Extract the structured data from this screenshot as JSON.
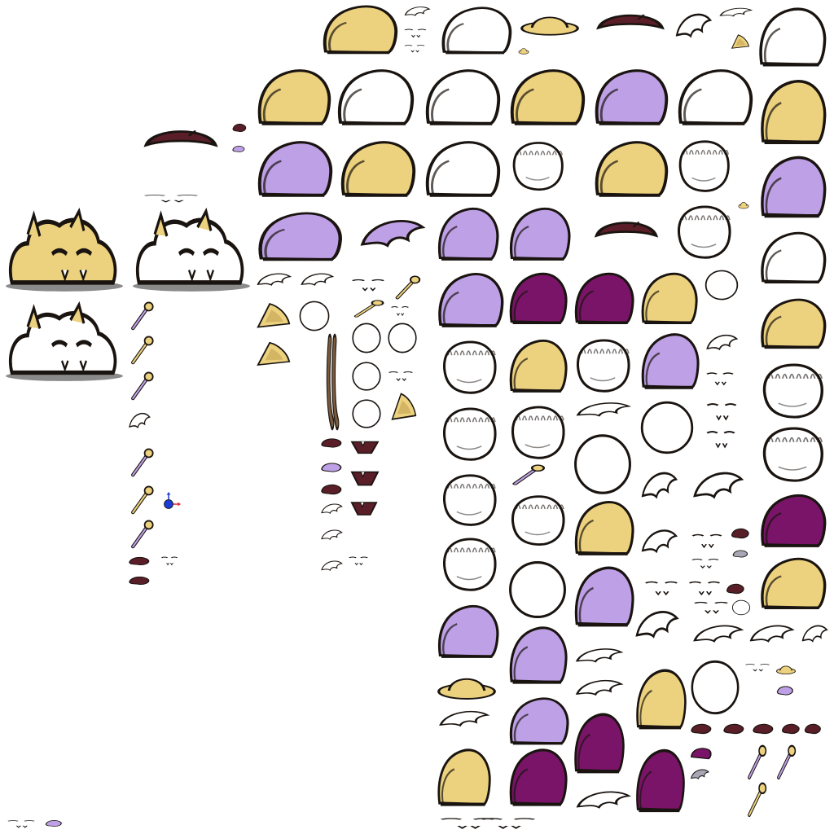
{
  "sheet": {
    "kind": "sprite-atlas",
    "background": "#ffffff"
  },
  "palette": {
    "outline": "#1a1410",
    "tan": "#ecd27e",
    "tan_shadow": "#c9a85a",
    "purple_dark": "#7a1468",
    "purple_mid": "#a3288f",
    "purple_light": "#bea0e6",
    "purple_pale": "#d6c2f2",
    "magenta": "#c03cb4",
    "brown": "#7a5a3c",
    "brown_light": "#b0835a",
    "gray": "#4d4a58",
    "gray_light": "#a8a6b4",
    "maroon": "#5a1e28",
    "shadow": "#8a8a8a",
    "gizmo_blue": "#1c3cd8",
    "gizmo_red": "#e0202a"
  },
  "sprite_types": [
    "blob-icon",
    "slime-body-icon",
    "blob-shape-icon",
    "fur-ball-icon",
    "orb-icon",
    "ear-icon",
    "antenna-icon",
    "tuft-icon",
    "eye-icon",
    "mouth-icon",
    "nose-icon",
    "horn-icon",
    "stick-icon",
    "cap-icon",
    "shade-icon",
    "mini-icon",
    "transform-gizmo-icon"
  ]
}
